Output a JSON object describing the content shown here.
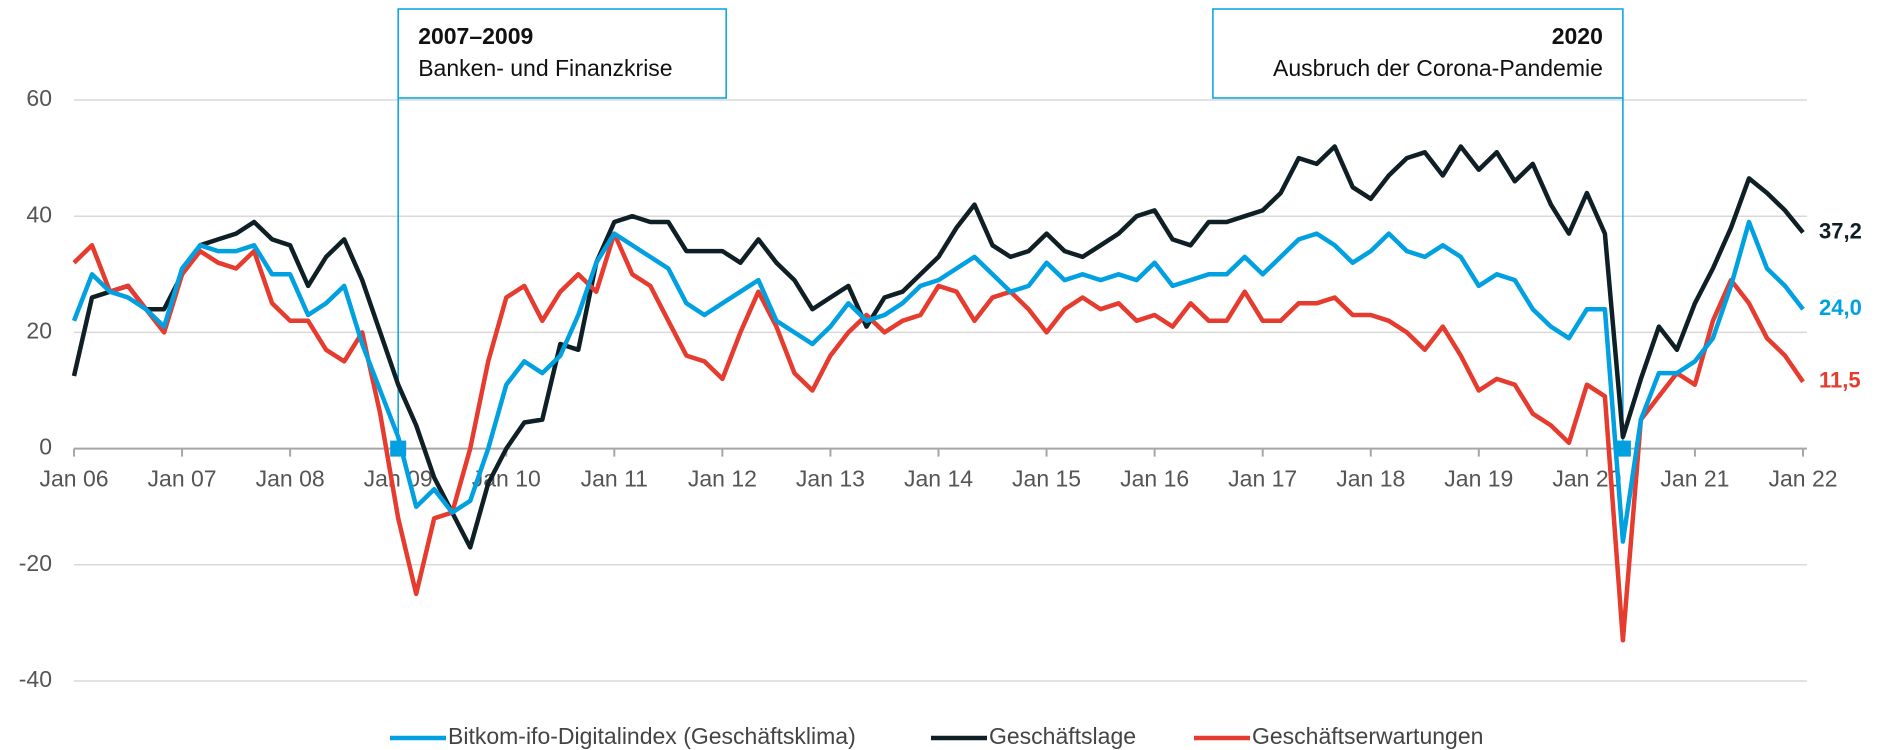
{
  "chart_data": {
    "type": "line",
    "categories": [
      "Jan 06",
      null,
      null,
      null,
      null,
      null,
      "Jan 07",
      null,
      null,
      null,
      null,
      null,
      "Jan 08",
      null,
      null,
      null,
      null,
      null,
      "Jan 09",
      null,
      null,
      null,
      null,
      null,
      "Jan 10",
      null,
      null,
      null,
      null,
      null,
      "Jan 11",
      null,
      null,
      null,
      null,
      null,
      "Jan 12",
      null,
      null,
      null,
      null,
      null,
      "Jan 13",
      null,
      null,
      null,
      null,
      null,
      "Jan 14",
      null,
      null,
      null,
      null,
      null,
      "Jan 15",
      null,
      null,
      null,
      null,
      null,
      "Jan 16",
      null,
      null,
      null,
      null,
      null,
      "Jan 17",
      null,
      null,
      null,
      null,
      null,
      "Jan 18",
      null,
      null,
      null,
      null,
      null,
      "Jan 19",
      null,
      null,
      null,
      null,
      null,
      "Jan 20",
      null,
      null,
      null,
      null,
      null,
      "Jan 21",
      null,
      null,
      null,
      null,
      null,
      "Jan 22"
    ],
    "series": [
      {
        "name": "Bitkom-ifo-Digitalindex (Geschäftsklima)",
        "color": "#00a0e1",
        "values": [
          22,
          30,
          27,
          26,
          24,
          21,
          31,
          35,
          34,
          34,
          35,
          30,
          30,
          23,
          25,
          28,
          18,
          10,
          2,
          -10,
          -7,
          -11,
          -9,
          0,
          11,
          15,
          13,
          16,
          23,
          32,
          37,
          35,
          33,
          31,
          25,
          23,
          25,
          27,
          29,
          22,
          20,
          18,
          21,
          25,
          22,
          23,
          25,
          28,
          29,
          31,
          33,
          30,
          27,
          28,
          32,
          29,
          30,
          29,
          30,
          29,
          32,
          28,
          29,
          30,
          30,
          33,
          30,
          33,
          36,
          37,
          35,
          32,
          34,
          37,
          34,
          33,
          35,
          33,
          28,
          30,
          29,
          24,
          21,
          19,
          24,
          24,
          -16,
          5,
          13,
          13,
          15,
          19,
          28,
          39,
          31,
          28,
          24.0
        ],
        "value_labels": [
          null,
          null,
          null,
          null,
          null,
          null,
          null,
          null,
          null,
          null,
          null,
          null,
          null,
          null,
          null,
          null,
          null,
          null,
          null,
          null,
          null,
          null,
          null,
          null,
          null,
          null,
          null,
          null,
          null,
          null,
          null,
          null,
          null,
          null,
          null,
          null,
          null,
          null,
          null,
          null,
          null,
          null,
          null,
          null,
          null,
          null,
          null,
          null,
          null,
          null,
          null,
          null,
          null,
          null,
          null,
          null,
          null,
          null,
          null,
          null,
          null,
          null,
          null,
          null,
          null,
          null,
          null,
          null,
          null,
          null,
          null,
          null,
          null,
          null,
          null,
          null,
          null,
          null,
          null,
          null,
          null,
          null,
          null,
          null,
          null,
          null,
          null,
          null,
          null,
          null,
          null,
          null,
          null,
          null,
          null,
          null,
          "24,0"
        ]
      },
      {
        "name": "Geschäftslage",
        "color": "#0f1f26",
        "values": [
          12.5,
          26,
          27,
          28,
          24,
          24,
          30,
          35,
          36,
          37,
          39,
          36,
          35,
          28,
          33,
          36,
          29,
          20,
          11,
          4,
          -5,
          -11,
          -17,
          -6,
          0,
          4.5,
          5,
          18,
          17,
          32,
          39,
          40,
          39,
          39,
          34,
          34,
          34,
          32,
          36,
          32,
          29,
          24,
          26,
          28,
          21,
          26,
          27,
          30,
          33,
          38,
          42,
          35,
          33,
          34,
          37,
          34,
          33,
          35,
          37,
          40,
          41,
          36,
          35,
          39,
          39,
          40,
          41,
          44,
          50,
          49,
          52,
          45,
          43,
          47,
          50,
          51,
          47,
          52,
          48,
          51,
          46,
          49,
          42,
          37,
          44,
          37,
          2,
          12,
          21,
          17,
          25,
          31,
          38,
          46.5,
          44,
          41,
          37.2
        ],
        "value_labels": [
          null,
          null,
          null,
          null,
          null,
          null,
          null,
          null,
          null,
          null,
          null,
          null,
          null,
          null,
          null,
          null,
          null,
          null,
          null,
          null,
          null,
          null,
          null,
          null,
          null,
          null,
          null,
          null,
          null,
          null,
          null,
          null,
          null,
          null,
          null,
          null,
          null,
          null,
          null,
          null,
          null,
          null,
          null,
          null,
          null,
          null,
          null,
          null,
          null,
          null,
          null,
          null,
          null,
          null,
          null,
          null,
          null,
          null,
          null,
          null,
          null,
          null,
          null,
          null,
          null,
          null,
          null,
          null,
          null,
          null,
          null,
          null,
          null,
          null,
          null,
          null,
          null,
          null,
          null,
          null,
          null,
          null,
          null,
          null,
          null,
          null,
          null,
          null,
          null,
          null,
          null,
          null,
          null,
          null,
          null,
          null,
          "37,2"
        ]
      },
      {
        "name": "Geschäftserwartungen",
        "color": "#e63c2f",
        "values": [
          32,
          35,
          27,
          28,
          24,
          20,
          30,
          34,
          32,
          31,
          34,
          25,
          22,
          22,
          17,
          15,
          20,
          6,
          -12,
          -25,
          -12,
          -11,
          0,
          15,
          26,
          28,
          22,
          27,
          30,
          27,
          37,
          30,
          28,
          22,
          16,
          15,
          12,
          20,
          27,
          21,
          13,
          10,
          16,
          20,
          23,
          20,
          22,
          23,
          28,
          27,
          22,
          26,
          27,
          24,
          20,
          24,
          26,
          24,
          25,
          22,
          23,
          21,
          25,
          22,
          22,
          27,
          22,
          22,
          25,
          25,
          26,
          23,
          23,
          22,
          20,
          17,
          21,
          16,
          10,
          12,
          11,
          6,
          4,
          1,
          11,
          9,
          -33,
          5,
          9,
          13,
          11,
          22,
          29,
          25,
          19,
          16,
          11.5
        ],
        "value_labels": [
          null,
          null,
          null,
          null,
          null,
          null,
          null,
          null,
          null,
          null,
          null,
          null,
          null,
          null,
          null,
          null,
          null,
          null,
          null,
          null,
          null,
          null,
          null,
          null,
          null,
          null,
          null,
          null,
          null,
          null,
          null,
          null,
          null,
          null,
          null,
          null,
          null,
          null,
          null,
          null,
          null,
          null,
          null,
          null,
          null,
          null,
          null,
          null,
          null,
          null,
          null,
          null,
          null,
          null,
          null,
          null,
          null,
          null,
          null,
          null,
          null,
          null,
          null,
          null,
          null,
          null,
          null,
          null,
          null,
          null,
          null,
          null,
          null,
          null,
          null,
          null,
          null,
          null,
          null,
          null,
          null,
          null,
          null,
          null,
          null,
          null,
          null,
          null,
          null,
          null,
          null,
          null,
          null,
          null,
          null,
          null,
          "11,5"
        ]
      }
    ],
    "ylim": [
      -40,
      60
    ],
    "yticks": [
      -40,
      -20,
      0,
      20,
      40,
      60
    ],
    "grid": true,
    "annotations": [
      {
        "title": "2007–2009",
        "text": "Banken- und Finanzkrise",
        "index": 18,
        "y": 0,
        "align": "left"
      },
      {
        "title": "2020",
        "text": "Ausbruch der Corona-Pandemie",
        "index": 86,
        "y": 0,
        "align": "right"
      }
    ],
    "legend": "bottom"
  }
}
